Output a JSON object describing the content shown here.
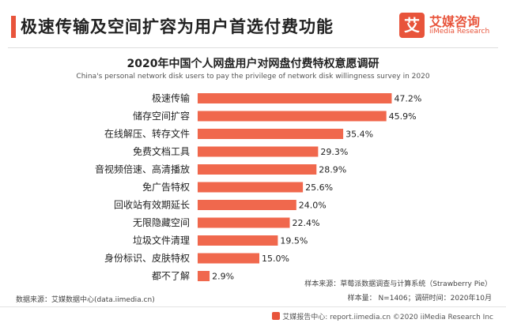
{
  "header": {
    "title": "极速传输及空间扩容为用户首选付费功能"
  },
  "logo": {
    "glyph": "艾",
    "name_cn": "艾媒咨询",
    "name_en": "iiMedia Research"
  },
  "colors": {
    "accent": "#e8543b",
    "bar": "#f0684d"
  },
  "chart_data": {
    "type": "bar",
    "orientation": "horizontal",
    "title": "2020年中国个人网盘用户对网盘付费特权意愿调研",
    "subtitle": "China's personal network disk users to pay the privilege of network disk willingness survey in 2020",
    "categories": [
      "极速传输",
      "储存空间扩容",
      "在线解压、转存文件",
      "免费文档工具",
      "音视频倍速、高清播放",
      "免广告特权",
      "回收站有效期延长",
      "无限隐藏空间",
      "垃圾文件清理",
      "身份标识、皮肤特权",
      "都不了解"
    ],
    "values": [
      47.2,
      45.9,
      35.4,
      29.3,
      28.9,
      25.6,
      24.0,
      22.4,
      19.5,
      15.0,
      2.9
    ],
    "value_labels": [
      "47.2%",
      "45.9%",
      "35.4%",
      "29.3%",
      "28.9%",
      "25.6%",
      "24.0%",
      "22.4%",
      "19.5%",
      "15.0%",
      "2.9%"
    ],
    "unit": "%",
    "xlim": [
      0,
      50
    ],
    "grid": false,
    "legend": "none"
  },
  "notes": {
    "sample_source": "样本来源：草莓派数据调查与计算系统（Strawberry Pie）",
    "sample_size": "样本量： N=1406；调研时间：2020年10月",
    "data_source": "数据来源：艾媒数据中心(data.iimedia.cn)"
  },
  "footer": {
    "text": "艾媒报告中心: report.iimedia.cn   ©2020  iiMedia Research  Inc"
  }
}
